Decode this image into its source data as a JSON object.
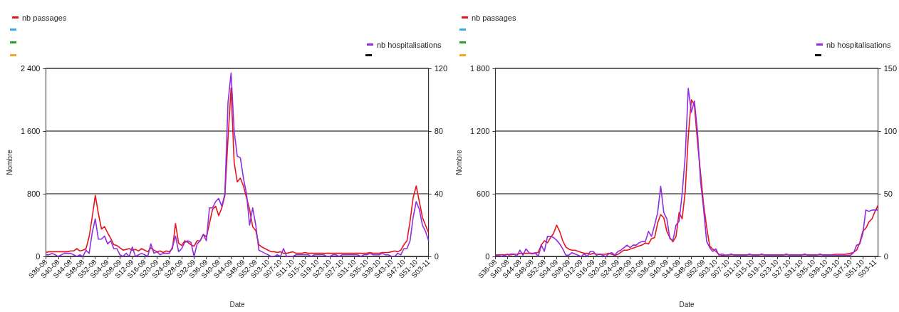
{
  "chart_data": [
    {
      "type": "line",
      "xlabel": "Date",
      "ylabel": "Nombre",
      "legend": "top",
      "grid": "y",
      "marker": "none",
      "line_style": "solid",
      "categories": [
        "S36-08",
        null,
        null,
        null,
        "S40-08",
        null,
        null,
        null,
        "S44-08",
        null,
        null,
        null,
        "S48-08",
        null,
        null,
        null,
        "S52-08",
        null,
        null,
        null,
        "S04-09",
        null,
        null,
        null,
        "S08-09",
        null,
        null,
        null,
        "S12-09",
        null,
        null,
        null,
        "S16-09",
        null,
        null,
        null,
        "S20-09",
        null,
        null,
        null,
        "S24-09",
        null,
        null,
        null,
        "S28-09",
        null,
        null,
        null,
        "S32-09",
        null,
        null,
        null,
        "S36-09",
        null,
        null,
        null,
        "S40-09",
        null,
        null,
        null,
        "S44-09",
        null,
        null,
        null,
        "S48-09",
        null,
        null,
        null,
        "S52-09",
        null,
        null,
        null,
        "S03-10",
        null,
        null,
        null,
        "S07-10",
        null,
        null,
        null,
        "S11-10",
        null,
        null,
        null,
        "S15-10",
        null,
        null,
        null,
        "S19-10",
        null,
        null,
        null,
        "S23-10",
        null,
        null,
        null,
        "S27-10",
        null,
        null,
        null,
        "S31-10",
        null,
        null,
        null,
        "S35-10",
        null,
        null,
        null,
        "S39-10",
        null,
        null,
        null,
        "S43-10",
        null,
        null,
        null,
        "S47-10",
        null,
        null,
        null,
        "S51-10",
        null,
        null,
        null,
        "S03-11"
      ],
      "ylim": [
        0,
        2400
      ],
      "yticks": [
        {
          "value": 0,
          "label": "0"
        },
        {
          "value": 800,
          "label": "800"
        },
        {
          "value": 1600,
          "label": "1 600"
        },
        {
          "value": 2400,
          "label": "2 400"
        }
      ],
      "y2lim": [
        0,
        120
      ],
      "y2ticks": [
        {
          "value": 0,
          "label": "0"
        },
        40,
        80,
        120
      ],
      "series": [
        {
          "name": "nb passages",
          "color": "#e8141c",
          "values": [
            50,
            60,
            60,
            60,
            60,
            60,
            60,
            60,
            70,
            70,
            100,
            70,
            80,
            100,
            250,
            500,
            780,
            550,
            350,
            380,
            300,
            230,
            150,
            140,
            110,
            80,
            90,
            100,
            80,
            90,
            70,
            100,
            80,
            60,
            110,
            80,
            60,
            70,
            50,
            70,
            60,
            100,
            420,
            170,
            140,
            200,
            180,
            150,
            130,
            200,
            200,
            280,
            250,
            420,
            600,
            640,
            520,
            620,
            780,
            1500,
            2150,
            1200,
            950,
            1000,
            900,
            750,
            600,
            380,
            330,
            150,
            120,
            100,
            80,
            60,
            60,
            50,
            60,
            40,
            40,
            50,
            60,
            40,
            40,
            40,
            50,
            40,
            40,
            40,
            40,
            40,
            40,
            40,
            40,
            40,
            40,
            40,
            40,
            40,
            40,
            40,
            40,
            40,
            40,
            40,
            40,
            50,
            40,
            40,
            40,
            50,
            50,
            50,
            60,
            70,
            60,
            80,
            150,
            200,
            450,
            750,
            900,
            700,
            500,
            400,
            300
          ]
        },
        {
          "name": "nb hospitalisations",
          "color": "#8e2de2",
          "axis": "y2",
          "values": [
            1,
            1,
            2,
            1,
            0,
            1,
            2,
            2,
            2,
            1,
            0,
            1,
            0,
            4,
            2,
            15,
            24,
            11,
            11,
            13,
            8,
            10,
            5,
            5,
            1,
            0,
            2,
            0,
            6,
            0,
            1,
            2,
            1,
            0,
            8,
            2,
            3,
            1,
            2,
            2,
            2,
            6,
            13,
            3,
            5,
            9,
            10,
            9,
            0,
            8,
            10,
            14,
            10,
            31,
            31,
            35,
            37,
            32,
            40,
            98,
            117,
            80,
            64,
            63,
            50,
            40,
            20,
            31,
            20,
            4,
            3,
            2,
            1,
            0,
            0,
            1,
            0,
            5,
            0,
            0,
            0,
            1,
            1,
            1,
            1,
            1,
            0,
            1,
            1,
            1,
            1,
            0,
            0,
            1,
            1,
            0,
            1,
            1,
            1,
            1,
            1,
            1,
            0,
            1,
            1,
            2,
            1,
            1,
            1,
            2,
            1,
            1,
            0,
            0,
            2,
            1,
            5,
            5,
            10,
            25,
            35,
            30,
            20,
            16,
            10
          ]
        }
      ]
    },
    {
      "type": "line",
      "xlabel": "Date",
      "ylabel": "Nombre",
      "legend": "top",
      "grid": "y",
      "marker": "none",
      "line_style": "solid",
      "categories": [
        "S36-08",
        null,
        null,
        null,
        "S40-08",
        null,
        null,
        null,
        "S44-08",
        null,
        null,
        null,
        "S48-08",
        null,
        null,
        null,
        "S52-08",
        null,
        null,
        null,
        "S04-09",
        null,
        null,
        null,
        "S08-09",
        null,
        null,
        null,
        "S12-09",
        null,
        null,
        null,
        "S16-09",
        null,
        null,
        null,
        "S20-09",
        null,
        null,
        null,
        "S24-09",
        null,
        null,
        null,
        "S28-09",
        null,
        null,
        null,
        "S32-09",
        null,
        null,
        null,
        "S36-09",
        null,
        null,
        null,
        "S40-09",
        null,
        null,
        null,
        "S44-09",
        null,
        null,
        null,
        "S48-09",
        null,
        null,
        null,
        "S52-09",
        null,
        null,
        null,
        "S03-10",
        null,
        null,
        null,
        "S07-10",
        null,
        null,
        null,
        "S11-10",
        null,
        null,
        null,
        "S15-10",
        null,
        null,
        null,
        "S19-10",
        null,
        null,
        null,
        "S23-10",
        null,
        null,
        null,
        "S27-10",
        null,
        null,
        null,
        "S31-10",
        null,
        null,
        null,
        "S35-10",
        null,
        null,
        null,
        "S39-10",
        null,
        null,
        null,
        "S43-10",
        null,
        null,
        null,
        "S47-10",
        null,
        null,
        null,
        "S51-10",
        null,
        null,
        null,
        "S03-11",
        null
      ],
      "ylim": [
        0,
        1800
      ],
      "yticks": [
        {
          "value": 0,
          "label": "0"
        },
        600,
        {
          "value": 1200,
          "label": "1 200"
        },
        {
          "value": 1800,
          "label": "1 800"
        }
      ],
      "y2lim": [
        0,
        150
      ],
      "y2ticks": [
        {
          "value": 0,
          "label": "0"
        },
        50,
        100,
        150
      ],
      "series": [
        {
          "name": "nb passages",
          "color": "#e8141c",
          "values": [
            15,
            15,
            15,
            15,
            20,
            15,
            20,
            20,
            30,
            30,
            30,
            30,
            30,
            30,
            40,
            110,
            150,
            130,
            180,
            220,
            300,
            240,
            150,
            90,
            70,
            60,
            60,
            50,
            40,
            30,
            30,
            20,
            30,
            20,
            20,
            20,
            20,
            30,
            20,
            10,
            20,
            40,
            60,
            60,
            70,
            80,
            90,
            100,
            110,
            130,
            120,
            170,
            180,
            320,
            400,
            370,
            240,
            180,
            140,
            190,
            420,
            360,
            620,
            1150,
            1500,
            1450,
            1100,
            800,
            500,
            280,
            100,
            70,
            50,
            20,
            10,
            10,
            15,
            15,
            15,
            15,
            15,
            15,
            15,
            15,
            15,
            15,
            15,
            15,
            15,
            15,
            15,
            15,
            15,
            15,
            15,
            15,
            15,
            15,
            15,
            15,
            15,
            15,
            15,
            15,
            15,
            15,
            15,
            15,
            15,
            15,
            15,
            20,
            20,
            20,
            20,
            25,
            30,
            40,
            60,
            130,
            240,
            270,
            330,
            360,
            430,
            490
          ]
        },
        {
          "name": "nb hospitalisations",
          "color": "#8e2de2",
          "axis": "y2",
          "values": [
            1,
            1,
            0,
            1,
            0,
            2,
            2,
            0,
            5,
            1,
            6,
            3,
            2,
            3,
            0,
            9,
            4,
            16,
            16,
            15,
            13,
            10,
            6,
            1,
            1,
            3,
            2,
            1,
            0,
            2,
            0,
            4,
            4,
            1,
            2,
            1,
            0,
            2,
            3,
            1,
            4,
            5,
            7,
            9,
            7,
            9,
            9,
            11,
            12,
            12,
            20,
            16,
            25,
            35,
            56,
            35,
            30,
            14,
            13,
            25,
            28,
            50,
            80,
            134,
            115,
            124,
            100,
            60,
            38,
            12,
            7,
            4,
            6,
            1,
            2,
            1,
            1,
            2,
            1,
            1,
            1,
            1,
            1,
            2,
            1,
            1,
            1,
            2,
            1,
            1,
            1,
            1,
            1,
            1,
            1,
            2,
            1,
            1,
            1,
            1,
            1,
            2,
            1,
            1,
            1,
            1,
            2,
            1,
            1,
            1,
            1,
            1,
            1,
            1,
            1,
            1,
            1,
            3,
            9,
            10,
            18,
            37,
            36,
            37,
            37,
            37
          ]
        }
      ]
    }
  ]
}
